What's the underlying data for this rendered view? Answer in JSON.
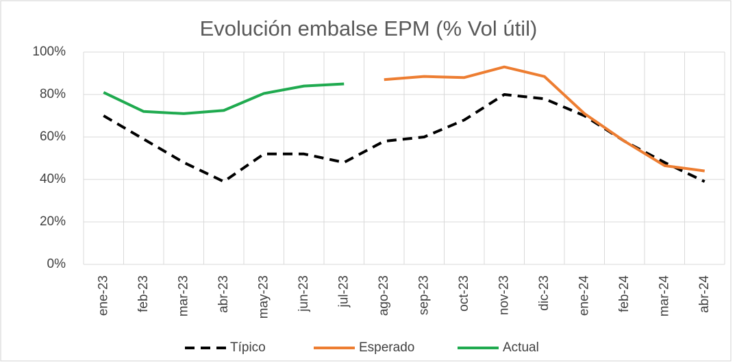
{
  "chart_data": {
    "type": "line",
    "title": "Evolución embalse EPM (% Vol útil)",
    "categories": [
      "ene-23",
      "feb-23",
      "mar-23",
      "abr-23",
      "may-23",
      "jun-23",
      "jul-23",
      "ago-23",
      "sep-23",
      "oct-23",
      "nov-23",
      "dic-23",
      "ene-24",
      "feb-24",
      "mar-24",
      "abr-24"
    ],
    "series": [
      {
        "name": "Típico",
        "color": "#000000",
        "dashed": true,
        "values": [
          70,
          59,
          48,
          39,
          52,
          52,
          48,
          58,
          60,
          68,
          80,
          78,
          70,
          58,
          48,
          39
        ]
      },
      {
        "name": "Esperado",
        "color": "#ed7d31",
        "dashed": false,
        "values": [
          null,
          null,
          null,
          null,
          null,
          null,
          null,
          87,
          88.5,
          88,
          93,
          88.5,
          71,
          58,
          46.5,
          44
        ]
      },
      {
        "name": "Actual",
        "color": "#1faa4f",
        "dashed": false,
        "values": [
          81,
          72,
          71,
          72.5,
          80.5,
          84,
          85,
          null,
          null,
          null,
          null,
          null,
          null,
          null,
          null,
          null
        ]
      }
    ],
    "ylim": [
      0,
      100
    ],
    "yticks": [
      {
        "value": 0,
        "label": "0%"
      },
      {
        "value": 20,
        "label": "20%"
      },
      {
        "value": 40,
        "label": "40%"
      },
      {
        "value": 60,
        "label": "60%"
      },
      {
        "value": 80,
        "label": "80%"
      },
      {
        "value": 100,
        "label": "100%"
      }
    ],
    "grid": true,
    "legend": "bottom"
  }
}
